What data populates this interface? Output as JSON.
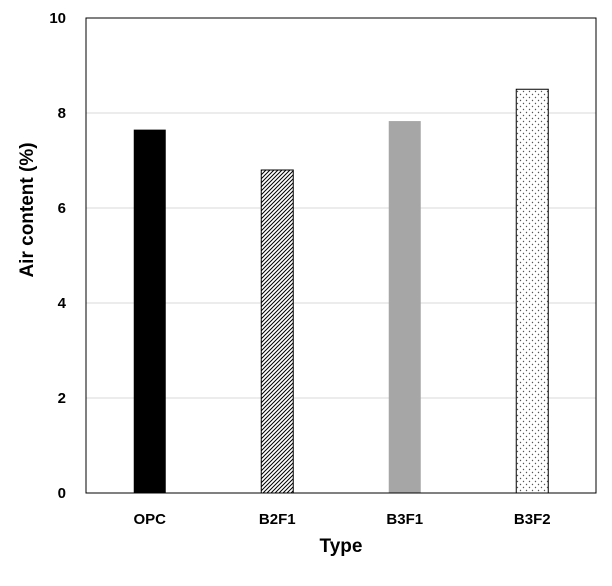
{
  "chart_data": {
    "type": "bar",
    "title": "",
    "xlabel": "Type",
    "ylabel": "Air content (%)",
    "categories": [
      "OPC",
      "B2F1",
      "B3F1",
      "B3F2"
    ],
    "values": [
      7.65,
      6.8,
      7.83,
      8.5
    ],
    "ylim": [
      0,
      10
    ],
    "yticks": [
      0,
      2,
      4,
      6,
      8,
      10
    ],
    "grid": "horizontal",
    "legend": "none",
    "bar_fills": [
      "solid-black",
      "diagonal-hatch",
      "solid-gray",
      "dotted"
    ],
    "colors": {
      "bar_black": "#000000",
      "bar_gray": "#a6a6a6",
      "grid": "#d9d9d9",
      "axis": "#000000"
    }
  }
}
